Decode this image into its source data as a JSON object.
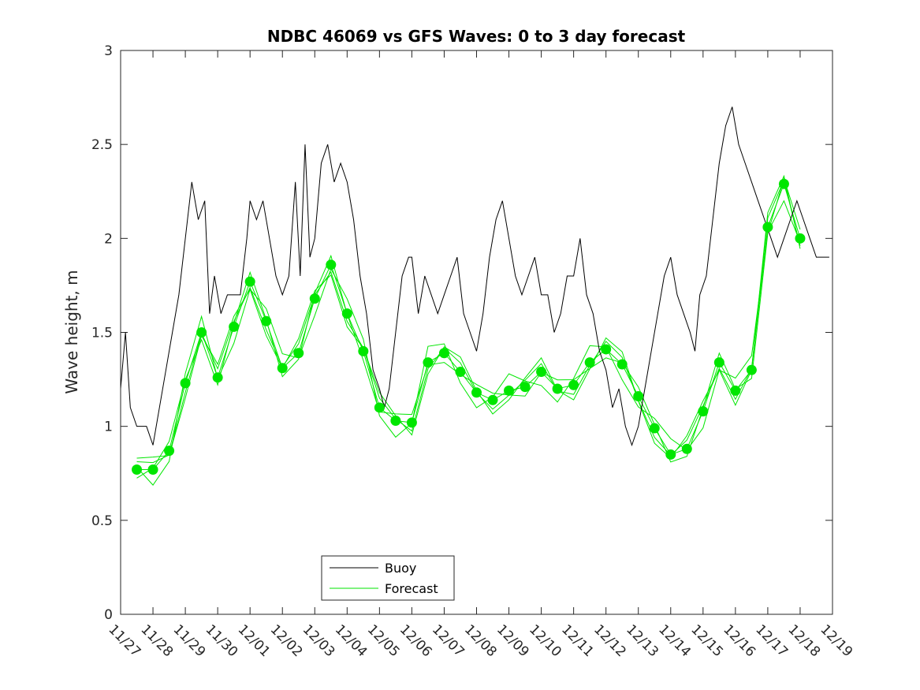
{
  "chart_data": {
    "type": "line",
    "title": "NDBC 46069 vs GFS Waves: 0 to 3 day forecast",
    "xlabel": "",
    "ylabel": "Wave height, m",
    "xlim": [
      0,
      22
    ],
    "ylim": [
      0,
      3
    ],
    "x_ticks": [
      "11/27",
      "11/28",
      "11/29",
      "11/30",
      "12/01",
      "12/02",
      "12/03",
      "12/04",
      "12/05",
      "12/06",
      "12/07",
      "12/08",
      "12/09",
      "12/10",
      "12/11",
      "12/12",
      "12/13",
      "12/14",
      "12/15",
      "12/16",
      "12/17",
      "12/18",
      "12/19"
    ],
    "y_ticks": [
      "0",
      "0.5",
      "1",
      "1.5",
      "2",
      "2.5",
      "3"
    ],
    "legend": {
      "position": "bottom-center",
      "entries": [
        "Buoy",
        "Forecast"
      ]
    },
    "colors": {
      "buoy": "#000000",
      "forecast": "#00e600"
    },
    "series": [
      {
        "name": "Buoy",
        "x": [
          0,
          0.15,
          0.3,
          0.5,
          0.8,
          1.0,
          1.2,
          1.4,
          1.6,
          1.8,
          2.0,
          2.2,
          2.4,
          2.6,
          2.75,
          2.9,
          3.1,
          3.3,
          3.5,
          3.7,
          3.9,
          4.0,
          4.2,
          4.4,
          4.6,
          4.8,
          5.0,
          5.2,
          5.4,
          5.55,
          5.7,
          5.85,
          6.0,
          6.2,
          6.4,
          6.6,
          6.8,
          7.0,
          7.2,
          7.4,
          7.6,
          7.8,
          8.0,
          8.15,
          8.3,
          8.5,
          8.7,
          8.9,
          9.0,
          9.2,
          9.4,
          9.6,
          9.8,
          10.0,
          10.2,
          10.4,
          10.6,
          10.8,
          11.0,
          11.2,
          11.4,
          11.6,
          11.8,
          12.0,
          12.2,
          12.4,
          12.6,
          12.8,
          13.0,
          13.2,
          13.4,
          13.6,
          13.8,
          14.0,
          14.2,
          14.4,
          14.6,
          14.8,
          15.0,
          15.2,
          15.4,
          15.6,
          15.8,
          16.0,
          16.2,
          16.4,
          16.6,
          16.8,
          17.0,
          17.2,
          17.4,
          17.6,
          17.75,
          17.9,
          18.1,
          18.3,
          18.5,
          18.7,
          18.9,
          19.1,
          19.3,
          19.5,
          19.7,
          19.9,
          20.1,
          20.3,
          20.5,
          20.7,
          20.9,
          21.1,
          21.3,
          21.5,
          21.7,
          21.9
        ],
        "values": [
          1.2,
          1.5,
          1.1,
          1.0,
          1.0,
          0.9,
          1.1,
          1.3,
          1.5,
          1.7,
          2.0,
          2.3,
          2.1,
          2.2,
          1.6,
          1.8,
          1.6,
          1.7,
          1.7,
          1.7,
          2.0,
          2.2,
          2.1,
          2.2,
          2.0,
          1.8,
          1.7,
          1.8,
          2.3,
          1.8,
          2.5,
          1.9,
          2.0,
          2.4,
          2.5,
          2.3,
          2.4,
          2.3,
          2.1,
          1.8,
          1.6,
          1.3,
          1.2,
          1.1,
          1.2,
          1.5,
          1.8,
          1.9,
          1.9,
          1.6,
          1.8,
          1.7,
          1.6,
          1.7,
          1.8,
          1.9,
          1.6,
          1.5,
          1.4,
          1.6,
          1.9,
          2.1,
          2.2,
          2.0,
          1.8,
          1.7,
          1.8,
          1.9,
          1.7,
          1.7,
          1.5,
          1.6,
          1.8,
          1.8,
          2.0,
          1.7,
          1.6,
          1.4,
          1.3,
          1.1,
          1.2,
          1.0,
          0.9,
          1.0,
          1.2,
          1.4,
          1.6,
          1.8,
          1.9,
          1.7,
          1.6,
          1.5,
          1.4,
          1.7,
          1.8,
          2.1,
          2.4,
          2.6,
          2.7,
          2.5,
          2.4,
          2.3,
          2.2,
          2.1,
          2.0,
          1.9,
          2.0,
          2.1,
          2.2,
          2.1,
          2.0,
          1.9,
          1.9,
          1.9
        ]
      },
      {
        "name": "Forecast",
        "x": [
          0.5,
          1.0,
          1.5,
          2.0,
          2.5,
          3.0,
          3.5,
          4.0,
          4.5,
          5.0,
          5.5,
          6.0,
          6.5,
          7.0,
          7.5,
          8.0,
          8.5,
          9.0,
          9.5,
          10.0,
          10.5,
          11.0,
          11.5,
          12.0,
          12.5,
          13.0,
          13.5,
          14.0,
          14.5,
          15.0,
          15.5,
          16.0,
          16.5,
          17.0,
          17.5,
          18.0,
          18.5,
          19.0,
          19.5,
          20.0,
          20.5,
          21.0
        ],
        "values": [
          0.77,
          0.77,
          0.87,
          1.23,
          1.5,
          1.26,
          1.53,
          1.77,
          1.56,
          1.31,
          1.39,
          1.68,
          1.86,
          1.6,
          1.4,
          1.1,
          1.03,
          1.02,
          1.34,
          1.39,
          1.29,
          1.18,
          1.14,
          1.19,
          1.21,
          1.29,
          1.2,
          1.22,
          1.34,
          1.41,
          1.33,
          1.16,
          0.99,
          0.85,
          0.88,
          1.08,
          1.34,
          1.19,
          1.3,
          2.06,
          2.29,
          2.0
        ]
      }
    ]
  }
}
